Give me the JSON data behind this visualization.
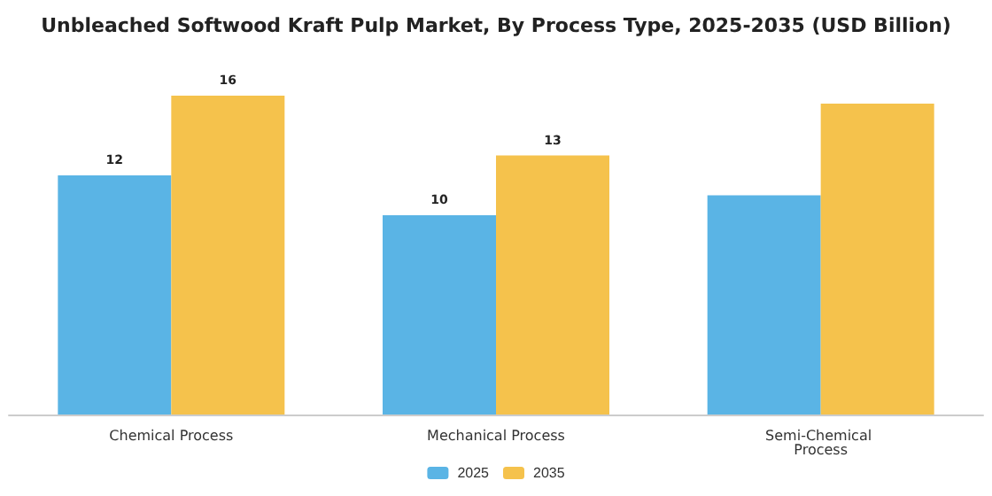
{
  "chart_data": {
    "type": "bar",
    "title": "Unbleached Softwood Kraft Pulp Market, By Process Type, 2025-2035 (USD Billion)",
    "categories": [
      "Chemical Process",
      "Mechanical Process",
      "Semi-Chemical Process"
    ],
    "series": [
      {
        "name": "2025",
        "color": "#5ab4e5",
        "values": [
          12,
          10,
          11
        ],
        "value_labels": [
          "12",
          "10",
          null
        ]
      },
      {
        "name": "2035",
        "color": "#f5c24c",
        "values": [
          16,
          13,
          15.6
        ],
        "value_labels": [
          "16",
          "13",
          null
        ]
      }
    ],
    "grid": false,
    "legend": "bottom"
  }
}
